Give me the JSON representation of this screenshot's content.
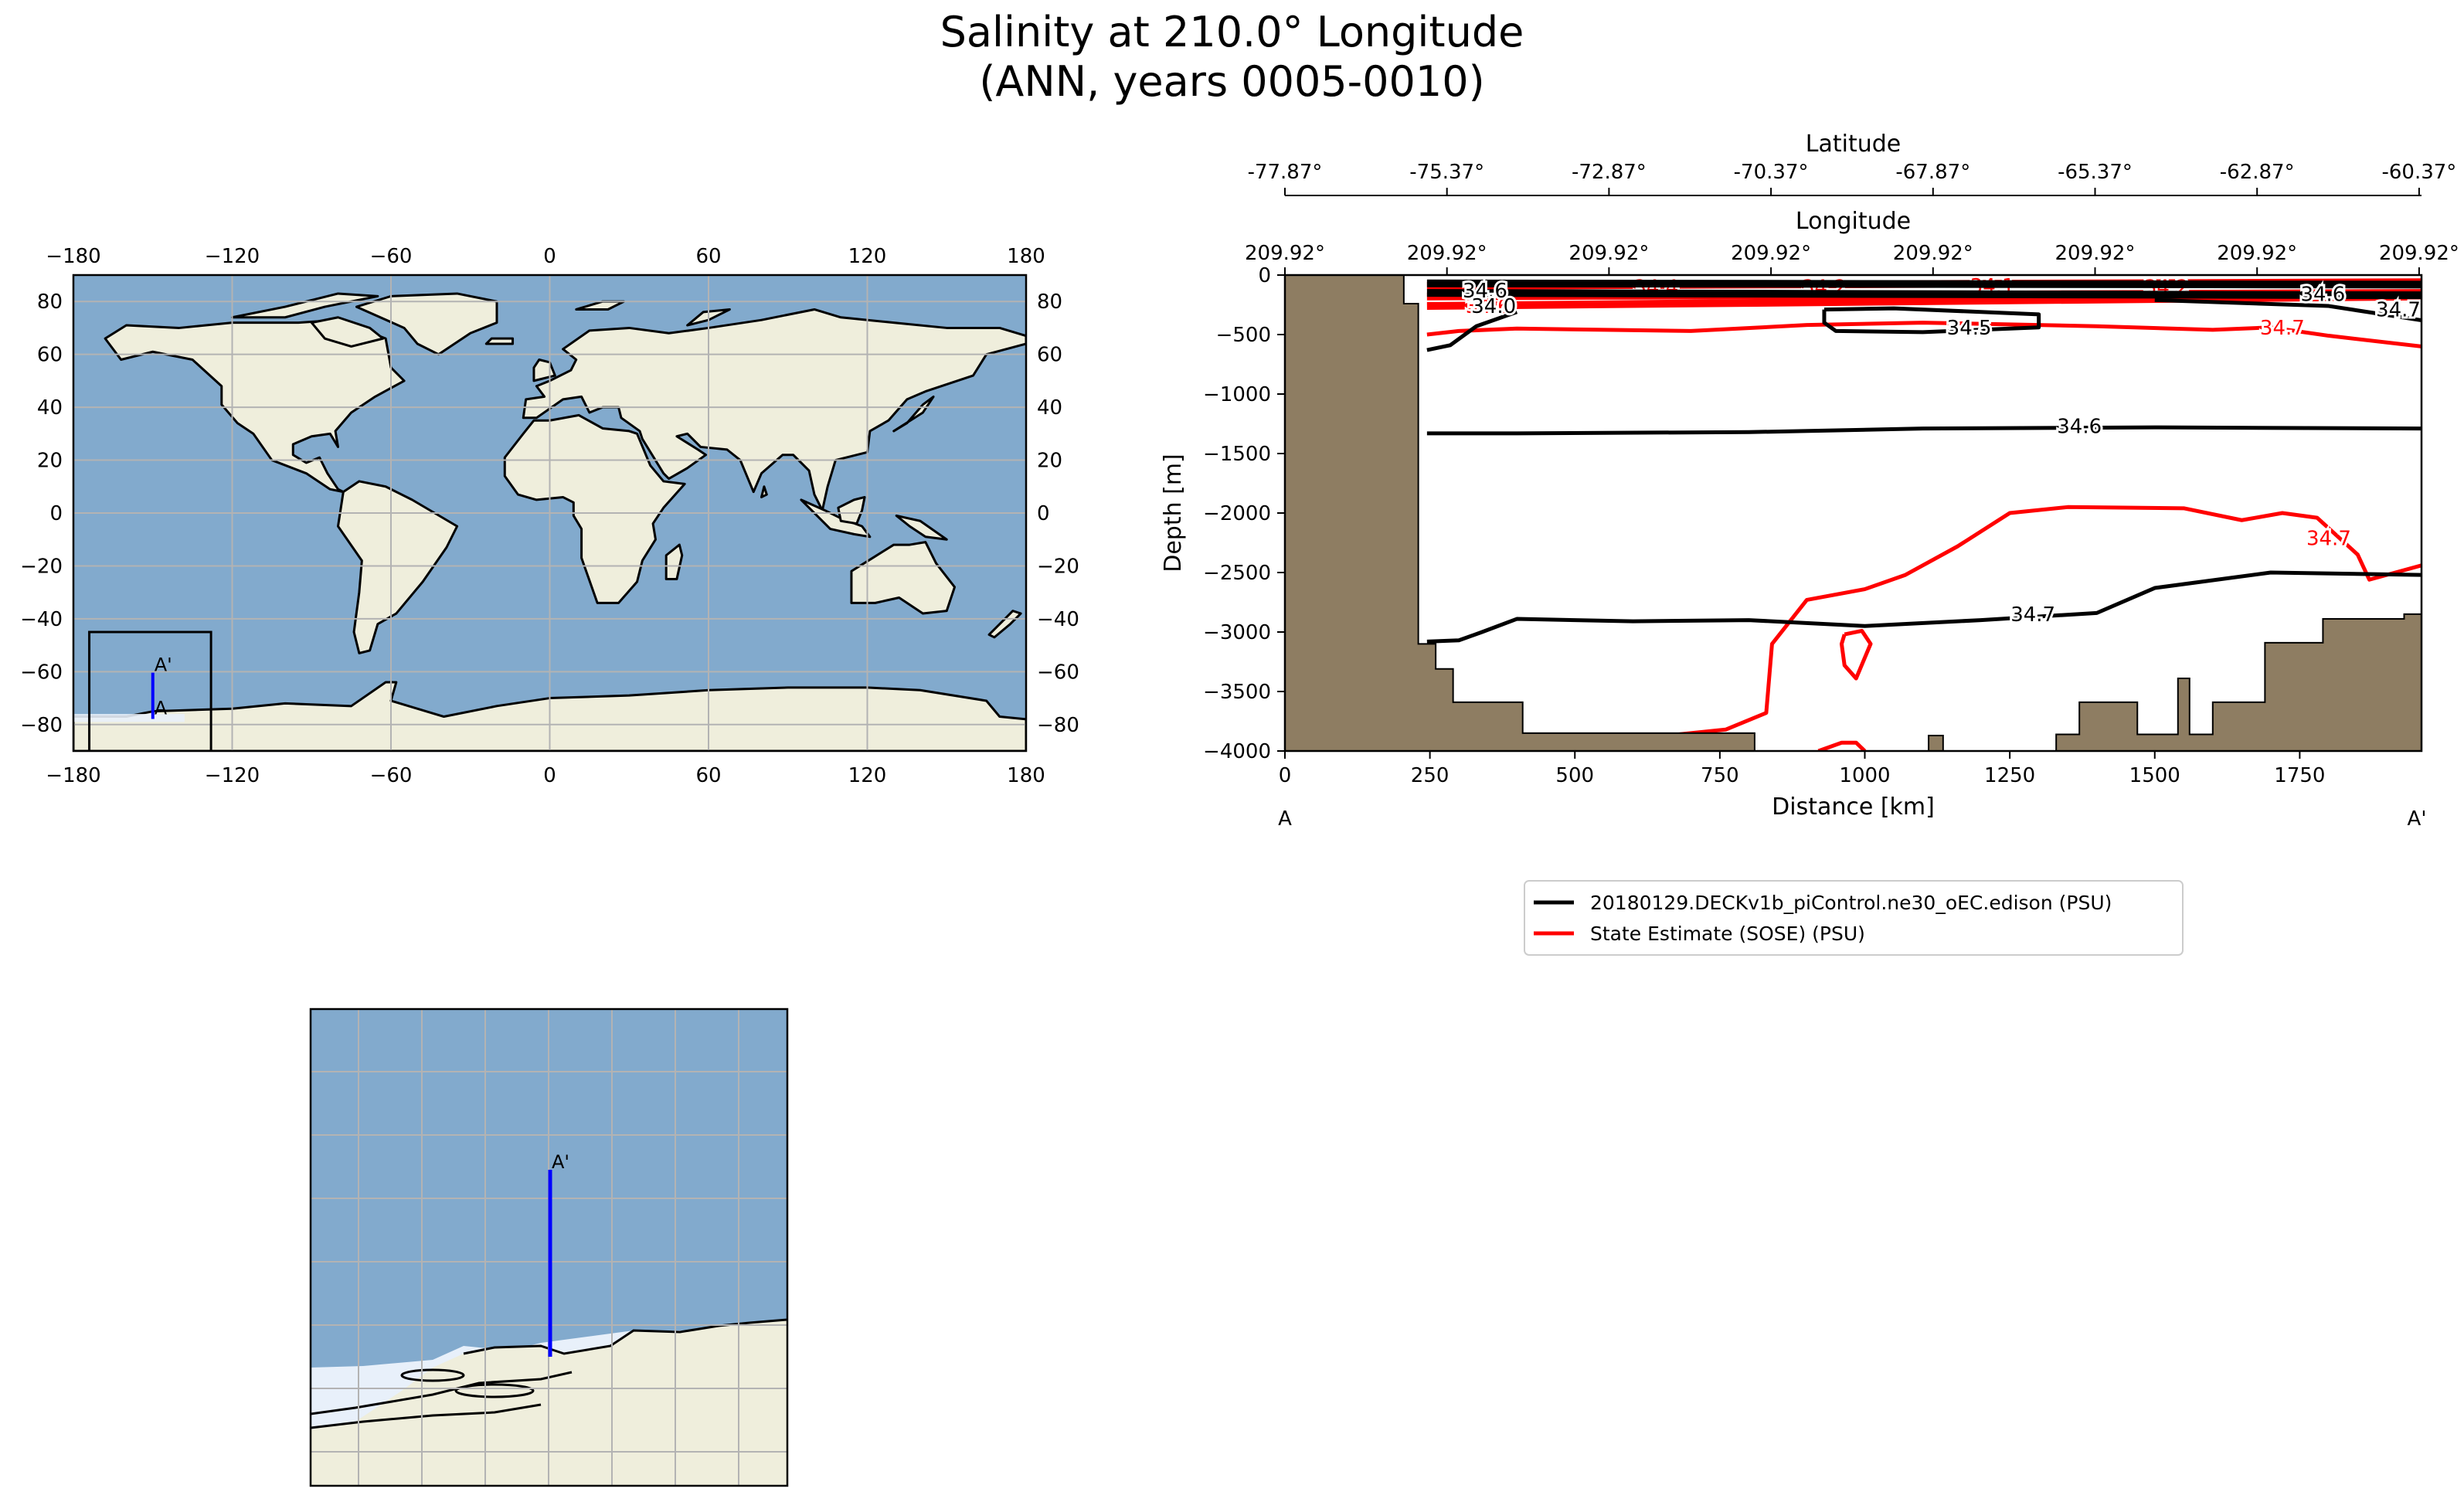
{
  "figure": {
    "title_line1": "Salinity at 210.0° Longitude",
    "title_line2": "(ANN, years 0005-0010)"
  },
  "colors": {
    "ocean": "#82AACD",
    "land": "#EFEEDC",
    "ice": "#E8F0FA",
    "bathymetry": "#8E7D62",
    "model_line": "#000000",
    "obs_line": "#FF0000",
    "transect": "#0000FF",
    "grid": "#B3B3B3"
  },
  "global_map": {
    "lon_ticks": [
      "−180",
      "−120",
      "−60",
      "0",
      "60",
      "120",
      "180"
    ],
    "lat_ticks": [
      "80",
      "60",
      "40",
      "20",
      "0",
      "−20",
      "−40",
      "−60",
      "−80"
    ],
    "transect_start_label": "A",
    "transect_end_label": "A'",
    "transect_lon": -150,
    "transect_lat_range": [
      -77.87,
      -60.37
    ],
    "inset_box_lon": [
      -174,
      -128
    ],
    "inset_box_lat": [
      -90,
      -45
    ]
  },
  "inset_map": {
    "transect_end_label": "A'"
  },
  "chart_data": {
    "type": "line",
    "title": "",
    "xlabel": "Distance [km]",
    "ylabel": "Depth [m]",
    "xlim": [
      0,
      1960
    ],
    "ylim": [
      -4000,
      0
    ],
    "x_ticks": [
      "0",
      "250",
      "500",
      "750",
      "1000",
      "1250",
      "1500",
      "1750"
    ],
    "y_ticks": [
      "0",
      "−500",
      "−1000",
      "−1500",
      "−2000",
      "−2500",
      "−3000",
      "−3500",
      "−4000"
    ],
    "start_label": "A",
    "end_label": "A'",
    "top_axis_longitude": {
      "label": "Longitude",
      "ticks": [
        "209.92°",
        "209.92°",
        "209.92°",
        "209.92°",
        "209.92°",
        "209.92°",
        "209.92°",
        "209.92°"
      ]
    },
    "top_axis_latitude": {
      "label": "Latitude",
      "ticks": [
        "-77.87°",
        "-75.37°",
        "-72.87°",
        "-70.37°",
        "-67.87°",
        "-65.37°",
        "-62.87°",
        "-60.37°"
      ]
    },
    "legend_position": "below plot",
    "series": [
      {
        "name": "20180129.DECKv1b_piControl.ne30_oEC.edison (PSU)",
        "color": "#000000",
        "contours": [
          {
            "level": "34.6",
            "points": [
              [
                245,
                -1330
              ],
              [
                400,
                -1330
              ],
              [
                800,
                -1320
              ],
              [
                1100,
                -1290
              ],
              [
                1500,
                -1280
              ],
              [
                1960,
                -1290
              ]
            ]
          },
          {
            "level": "34.7",
            "points": [
              [
                245,
                -3080
              ],
              [
                300,
                -3070
              ],
              [
                340,
                -3000
              ],
              [
                400,
                -2890
              ],
              [
                600,
                -2910
              ],
              [
                800,
                -2900
              ],
              [
                1000,
                -2950
              ],
              [
                1200,
                -2900
              ],
              [
                1400,
                -2840
              ],
              [
                1500,
                -2630
              ],
              [
                1700,
                -2500
              ],
              [
                1960,
                -2520
              ]
            ]
          },
          {
            "level": "34.5",
            "points": [
              [
                930,
                -290
              ],
              [
                1050,
                -280
              ],
              [
                1300,
                -330
              ],
              [
                1300,
                -440
              ],
              [
                1100,
                -480
              ],
              [
                950,
                -470
              ],
              [
                930,
                -400
              ],
              [
                930,
                -290
              ]
            ]
          },
          {
            "level": "34.5",
            "points": [
              [
                245,
                -630
              ],
              [
                285,
                -590
              ],
              [
                330,
                -430
              ],
              [
                400,
                -310
              ]
            ]
          },
          {
            "level": "34.7",
            "points": [
              [
                1500,
                -210
              ],
              [
                1800,
                -260
              ],
              [
                1960,
                -380
              ]
            ]
          }
        ],
        "near_surface_bands": [
          [
            245,
            -70
          ],
          [
            1960,
            -80
          ],
          [
            245,
            -150
          ],
          [
            1960,
            -170
          ]
        ],
        "labels": [
          {
            "text": "34.6",
            "x": 1370,
            "y": -1270
          },
          {
            "text": "34.7",
            "x": 1290,
            "y": -2850
          },
          {
            "text": "34.5",
            "x": 1180,
            "y": -440
          },
          {
            "text": "34.6",
            "x": 345,
            "y": -130
          },
          {
            "text": "34.7",
            "x": 1920,
            "y": -290
          },
          {
            "text": "34.6",
            "x": 1790,
            "y": -160
          },
          {
            "text": "34.0",
            "x": 360,
            "y": -260
          }
        ]
      },
      {
        "name": "State Estimate (SOSE) (PSU)",
        "color": "#FF0000",
        "contours": [
          {
            "level": "34.7",
            "points": [
              [
                245,
                -500
              ],
              [
                300,
                -470
              ],
              [
                400,
                -450
              ],
              [
                700,
                -470
              ],
              [
                900,
                -420
              ],
              [
                1100,
                -400
              ],
              [
                1400,
                -430
              ],
              [
                1600,
                -460
              ],
              [
                1700,
                -440
              ],
              [
                1800,
                -510
              ],
              [
                1960,
                -600
              ]
            ]
          },
          {
            "level": "34.7",
            "points": [
              [
                540,
                -4000
              ],
              [
                640,
                -3880
              ],
              [
                760,
                -3820
              ],
              [
                830,
                -3680
              ],
              [
                840,
                -3100
              ],
              [
                900,
                -2730
              ],
              [
                1000,
                -2640
              ],
              [
                1070,
                -2520
              ],
              [
                1160,
                -2280
              ],
              [
                1250,
                -2000
              ],
              [
                1350,
                -1950
              ],
              [
                1550,
                -1960
              ],
              [
                1650,
                -2060
              ],
              [
                1720,
                -2000
              ],
              [
                1780,
                -2040
              ],
              [
                1850,
                -2350
              ],
              [
                1870,
                -2560
              ],
              [
                1960,
                -2440
              ]
            ]
          },
          {
            "level": "34.7",
            "points": [
              [
                965,
                -3020
              ],
              [
                995,
                -2990
              ],
              [
                1010,
                -3100
              ],
              [
                985,
                -3390
              ],
              [
                965,
                -3280
              ],
              [
                960,
                -3100
              ],
              [
                965,
                -3020
              ]
            ]
          },
          {
            "level": "34.7",
            "points": [
              [
                920,
                -4000
              ],
              [
                960,
                -3930
              ],
              [
                985,
                -3930
              ],
              [
                1000,
                -4000
              ]
            ]
          }
        ],
        "near_surface_bands": [
          [
            245,
            -90
          ],
          [
            1960,
            -60
          ],
          [
            245,
            -180
          ],
          [
            1960,
            -150
          ],
          [
            245,
            -260
          ],
          [
            1960,
            -180
          ]
        ],
        "labels": [
          {
            "text": "34.7",
            "x": 1720,
            "y": -440
          },
          {
            "text": "34.7",
            "x": 1800,
            "y": -2210
          },
          {
            "text": "34.4",
            "x": 640,
            "y": -100
          },
          {
            "text": "34.2",
            "x": 930,
            "y": -100
          },
          {
            "text": "34.1",
            "x": 1220,
            "y": -90
          },
          {
            "text": "34.2",
            "x": 1520,
            "y": -100
          },
          {
            "text": "34.6",
            "x": 350,
            "y": -260
          }
        ]
      }
    ],
    "bathymetry_profile": [
      [
        0,
        -4000
      ],
      [
        0,
        0
      ],
      [
        205,
        0
      ],
      [
        205,
        -240
      ],
      [
        230,
        -240
      ],
      [
        230,
        -3100
      ],
      [
        260,
        -3100
      ],
      [
        260,
        -3310
      ],
      [
        290,
        -3310
      ],
      [
        290,
        -3590
      ],
      [
        410,
        -3590
      ],
      [
        410,
        -3850
      ],
      [
        810,
        -3850
      ],
      [
        810,
        -4000
      ],
      [
        1110,
        -4000
      ],
      [
        1110,
        -3870
      ],
      [
        1135,
        -3870
      ],
      [
        1135,
        -4000
      ],
      [
        1330,
        -4000
      ],
      [
        1330,
        -3860
      ],
      [
        1370,
        -3860
      ],
      [
        1370,
        -3590
      ],
      [
        1470,
        -3590
      ],
      [
        1470,
        -3860
      ],
      [
        1540,
        -3860
      ],
      [
        1540,
        -3390
      ],
      [
        1560,
        -3390
      ],
      [
        1560,
        -3860
      ],
      [
        1600,
        -3860
      ],
      [
        1600,
        -3590
      ],
      [
        1690,
        -3590
      ],
      [
        1690,
        -3090
      ],
      [
        1790,
        -3090
      ],
      [
        1790,
        -2890
      ],
      [
        1930,
        -2890
      ],
      [
        1930,
        -2850
      ],
      [
        1960,
        -2850
      ],
      [
        1960,
        -4000
      ]
    ]
  }
}
